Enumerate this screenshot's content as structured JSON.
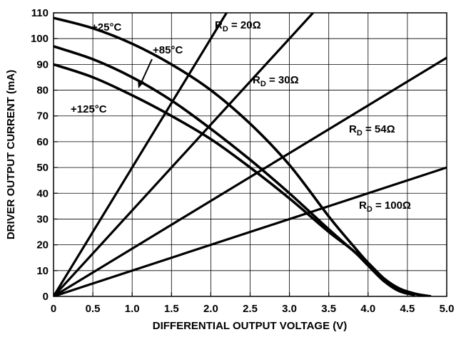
{
  "chart_data": {
    "type": "line",
    "title": "",
    "xlabel": "DIFFERENTIAL OUTPUT VOLTAGE (V)",
    "ylabel": "DRIVER OUTPUT CURRENT (mA)",
    "xlim": [
      0,
      5.0
    ],
    "ylim": [
      0,
      110
    ],
    "grid": true,
    "x_ticks": [
      "0",
      "0.5",
      "1.0",
      "1.5",
      "2.0",
      "2.5",
      "3.0",
      "3.5",
      "4.0",
      "4.5",
      "5.0"
    ],
    "y_ticks": [
      "0",
      "10",
      "20",
      "30",
      "40",
      "50",
      "60",
      "70",
      "80",
      "90",
      "100",
      "110"
    ],
    "temperature_curves": [
      {
        "label": "+25°C",
        "points": [
          [
            0,
            108
          ],
          [
            0.5,
            104
          ],
          [
            1.0,
            98
          ],
          [
            1.5,
            90
          ],
          [
            2.0,
            80
          ],
          [
            2.5,
            67
          ],
          [
            3.0,
            51
          ],
          [
            3.5,
            31
          ],
          [
            3.8,
            20
          ],
          [
            4.0,
            13
          ],
          [
            4.2,
            7
          ],
          [
            4.4,
            3
          ],
          [
            4.6,
            1
          ],
          [
            4.8,
            0
          ]
        ]
      },
      {
        "label": "+85°C",
        "points": [
          [
            0,
            97
          ],
          [
            0.5,
            92
          ],
          [
            1.0,
            85
          ],
          [
            1.5,
            76
          ],
          [
            2.0,
            65
          ],
          [
            2.5,
            53
          ],
          [
            3.0,
            40
          ],
          [
            3.5,
            26
          ],
          [
            3.8,
            18
          ],
          [
            4.0,
            13
          ],
          [
            4.2,
            7
          ],
          [
            4.4,
            3
          ],
          [
            4.6,
            1
          ],
          [
            4.7,
            0
          ]
        ]
      },
      {
        "label": "+125°C",
        "points": [
          [
            0,
            90
          ],
          [
            0.5,
            85
          ],
          [
            1.0,
            78
          ],
          [
            1.5,
            70
          ],
          [
            2.0,
            61
          ],
          [
            2.5,
            50
          ],
          [
            3.0,
            38
          ],
          [
            3.5,
            25
          ],
          [
            3.8,
            18
          ],
          [
            4.0,
            12
          ],
          [
            4.2,
            6
          ],
          [
            4.4,
            2
          ],
          [
            4.6,
            0.5
          ]
        ]
      }
    ],
    "load_lines": [
      {
        "label_main": "R",
        "label_sub": "D",
        "label_value": " = 20Ω",
        "points": [
          [
            0,
            0
          ],
          [
            2.2,
            110
          ]
        ]
      },
      {
        "label_main": "R",
        "label_sub": "D",
        "label_value": " = 30Ω",
        "points": [
          [
            0,
            0
          ],
          [
            3.3,
            110
          ]
        ]
      },
      {
        "label_main": "R",
        "label_sub": "D",
        "label_value": " = 54Ω",
        "points": [
          [
            0,
            0
          ],
          [
            5.0,
            92.6
          ]
        ]
      },
      {
        "label_main": "R",
        "label_sub": "D",
        "label_value": " = 100Ω",
        "points": [
          [
            0,
            0
          ],
          [
            5.0,
            50
          ]
        ]
      }
    ]
  }
}
